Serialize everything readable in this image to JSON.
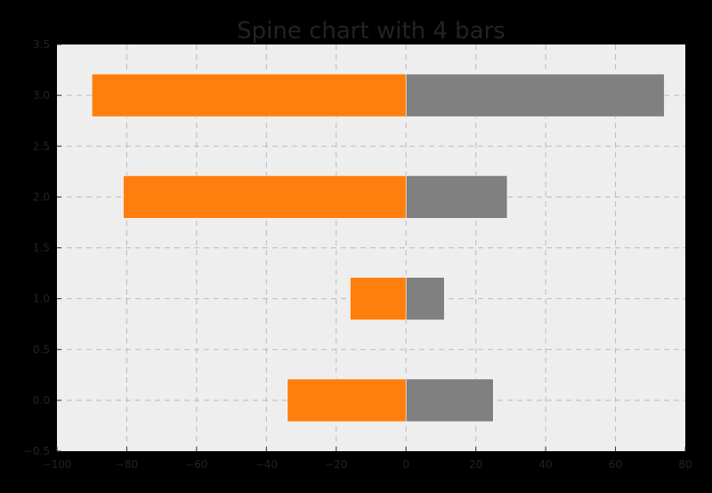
{
  "chart_data": {
    "type": "bar",
    "orientation": "horizontal",
    "stacking": "diverging",
    "title": "Spine chart with 4 bars",
    "xlabel": "",
    "ylabel": "",
    "y": [
      0.0,
      1.0,
      2.0,
      3.0
    ],
    "series": [
      {
        "values": [
          -34,
          -16,
          -81,
          -90
        ],
        "color": "#ff7f0e"
      },
      {
        "values": [
          25,
          11,
          29,
          74
        ],
        "color": "#808080"
      }
    ],
    "xlim": [
      -100,
      80
    ],
    "ylim": [
      -0.5,
      3.5
    ],
    "xticks": [
      -100,
      -80,
      -60,
      -40,
      -20,
      0,
      20,
      40,
      60,
      80
    ],
    "xtick_labels": [
      "−100",
      "−80",
      "−60",
      "−40",
      "−20",
      "0",
      "20",
      "40",
      "60",
      "80"
    ],
    "yticks": [
      -0.5,
      0.0,
      0.5,
      1.0,
      1.5,
      2.0,
      2.5,
      3.0,
      3.5
    ],
    "ytick_labels": [
      "−0.5",
      "0.0",
      "0.5",
      "1.0",
      "1.5",
      "2.0",
      "2.5",
      "3.0",
      "3.5"
    ],
    "grid": true,
    "legend": false,
    "colors": {
      "figure_background": "#000000",
      "plot_background": "#eeeeee",
      "grid": "#bbbbbb",
      "text": "#222222"
    }
  }
}
